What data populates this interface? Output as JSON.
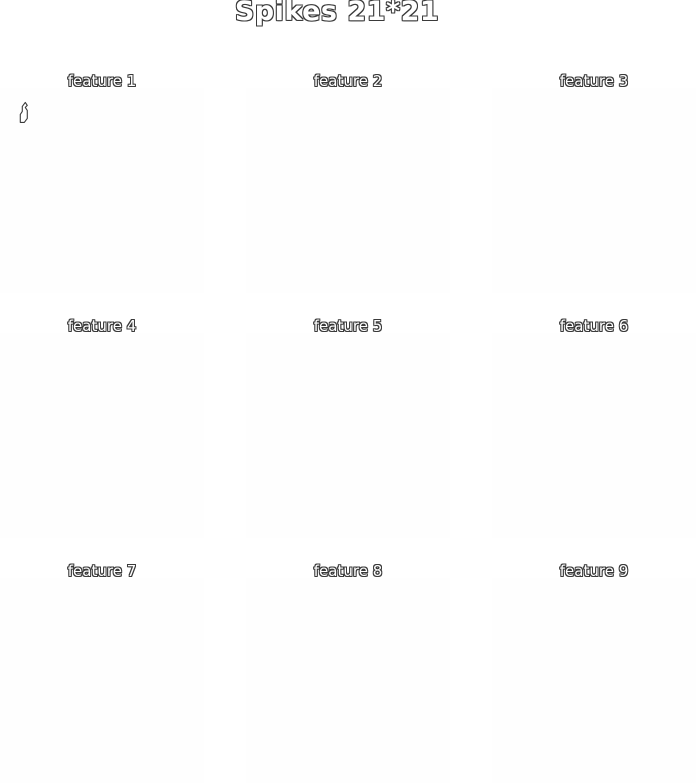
{
  "chart_data": {
    "type": "heatmap",
    "title": "Spikes 21*21",
    "grid": false,
    "colors": {
      "background": "#ffffff",
      "panel_fill": "#fefefe",
      "outline": "#3a3a3a"
    },
    "panels": [
      {
        "title": "feature 1",
        "marks": [
          {
            "shape": "spike",
            "x": 2,
            "y": 2
          }
        ]
      },
      {
        "title": "feature 2",
        "marks": []
      },
      {
        "title": "feature 3",
        "marks": []
      },
      {
        "title": "feature 4",
        "marks": []
      },
      {
        "title": "feature 5",
        "marks": []
      },
      {
        "title": "feature 6",
        "marks": []
      },
      {
        "title": "feature 7",
        "marks": []
      },
      {
        "title": "feature 8",
        "marks": []
      },
      {
        "title": "feature 9",
        "marks": []
      }
    ]
  }
}
